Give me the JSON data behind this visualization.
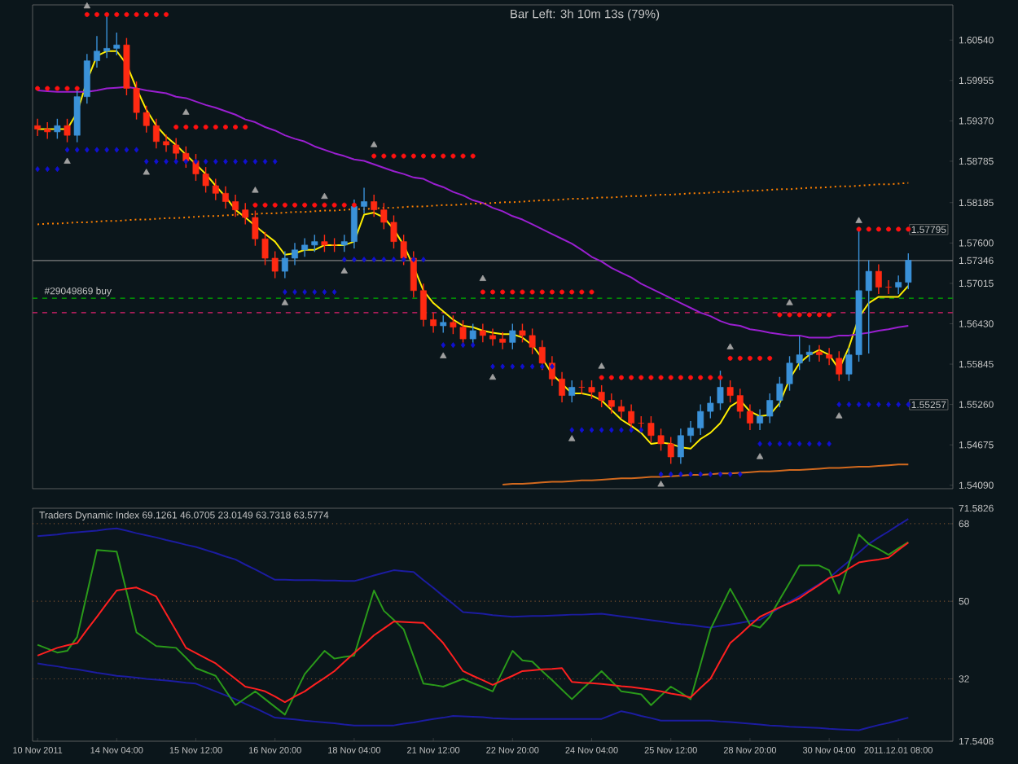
{
  "chart_data": [
    {
      "type": "candlestick",
      "title": "Bar Left: 3h 10m 13s (79%)",
      "categories": [
        null,
        null,
        null,
        null,
        null,
        null,
        null,
        null,
        null,
        null,
        null,
        null,
        null,
        null,
        null,
        null,
        null,
        null,
        null,
        null,
        null,
        null,
        null,
        null,
        null,
        null,
        null,
        null,
        null,
        null,
        null,
        null,
        null,
        null,
        null,
        null,
        null,
        null,
        null,
        null,
        null,
        null,
        null,
        null,
        null,
        null,
        null,
        null,
        null,
        null,
        null,
        null,
        null,
        null,
        null,
        null,
        null,
        null,
        null,
        null,
        null,
        null,
        null,
        null,
        null,
        null,
        null,
        null,
        null,
        null,
        null,
        null,
        null,
        null,
        null,
        null,
        null,
        null,
        null,
        null,
        null,
        null,
        null,
        null,
        null,
        null,
        null,
        null,
        null
      ],
      "ohlc": [
        [
          1.593,
          1.594,
          1.5915,
          1.5925
        ],
        [
          1.5925,
          1.5935,
          1.5911,
          1.5921
        ],
        [
          1.5921,
          1.594,
          1.5911,
          1.593
        ],
        [
          1.593,
          1.594,
          1.5906,
          1.5916
        ],
        [
          1.5916,
          1.5982,
          1.5906,
          1.5972
        ],
        [
          1.5972,
          1.6034,
          1.5962,
          1.6024
        ],
        [
          1.6024,
          1.606,
          1.6014,
          1.6038
        ],
        [
          1.6038,
          1.6089,
          1.6028,
          1.6042
        ],
        [
          1.6042,
          1.6065,
          1.6032,
          1.6047
        ],
        [
          1.6047,
          1.6057,
          1.5974,
          1.5984
        ],
        [
          1.5984,
          1.5994,
          1.5939,
          1.5949
        ],
        [
          1.5949,
          1.5959,
          1.592,
          1.593
        ],
        [
          1.593,
          1.594,
          1.5897,
          1.5907
        ],
        [
          1.5907,
          1.5917,
          1.5892,
          1.5902
        ],
        [
          1.5902,
          1.5912,
          1.588,
          1.589
        ],
        [
          1.589,
          1.59,
          1.5869,
          1.5879
        ],
        [
          1.5879,
          1.5889,
          1.585,
          1.586
        ],
        [
          1.586,
          1.587,
          1.5833,
          1.5843
        ],
        [
          1.5843,
          1.5853,
          1.5822,
          1.5832
        ],
        [
          1.5832,
          1.5842,
          1.581,
          1.582
        ],
        [
          1.582,
          1.583,
          1.5798,
          1.5808
        ],
        [
          1.5808,
          1.5818,
          1.5787,
          1.5797
        ],
        [
          1.5797,
          1.5807,
          1.5756,
          1.5766
        ],
        [
          1.5766,
          1.5776,
          1.5728,
          1.5738
        ],
        [
          1.5738,
          1.5748,
          1.5709,
          1.5719
        ],
        [
          1.5719,
          1.5748,
          1.5709,
          1.5738
        ],
        [
          1.5738,
          1.576,
          1.5728,
          1.575
        ],
        [
          1.575,
          1.5767,
          1.574,
          1.5757
        ],
        [
          1.5757,
          1.5772,
          1.5747,
          1.5762
        ],
        [
          1.5762,
          1.5772,
          1.5747,
          1.5757
        ],
        [
          1.5757,
          1.5767,
          1.5747,
          1.5757
        ],
        [
          1.5757,
          1.5772,
          1.5747,
          1.5762
        ],
        [
          1.5762,
          1.5823,
          1.5752,
          1.5813
        ],
        [
          1.5813,
          1.584,
          1.5803,
          1.582
        ],
        [
          1.582,
          1.583,
          1.5798,
          1.5808
        ],
        [
          1.5808,
          1.5818,
          1.578,
          1.579
        ],
        [
          1.579,
          1.58,
          1.5752,
          1.5762
        ],
        [
          1.5762,
          1.5772,
          1.5728,
          1.5738
        ],
        [
          1.5738,
          1.5748,
          1.5681,
          1.5691
        ],
        [
          1.5691,
          1.5701,
          1.5639,
          1.5649
        ],
        [
          1.5649,
          1.5659,
          1.563,
          1.564
        ],
        [
          1.564,
          1.5655,
          1.563,
          1.5645
        ],
        [
          1.5645,
          1.5655,
          1.5628,
          1.5638
        ],
        [
          1.5638,
          1.5648,
          1.5611,
          1.5621
        ],
        [
          1.5621,
          1.5643,
          1.5611,
          1.5633
        ],
        [
          1.5633,
          1.5643,
          1.5616,
          1.5626
        ],
        [
          1.5626,
          1.5636,
          1.5611,
          1.5621
        ],
        [
          1.5621,
          1.5631,
          1.5606,
          1.5616
        ],
        [
          1.5616,
          1.5643,
          1.5606,
          1.5633
        ],
        [
          1.5633,
          1.5643,
          1.5616,
          1.5626
        ],
        [
          1.5626,
          1.5636,
          1.5599,
          1.5609
        ],
        [
          1.5609,
          1.5619,
          1.5576,
          1.5586
        ],
        [
          1.5586,
          1.5596,
          1.5553,
          1.5563
        ],
        [
          1.5563,
          1.5573,
          1.5529,
          1.5539
        ],
        [
          1.5539,
          1.5561,
          1.5529,
          1.5551
        ],
        [
          1.5551,
          1.5561,
          1.5541,
          1.5551
        ],
        [
          1.5551,
          1.5561,
          1.5534,
          1.5544
        ],
        [
          1.5544,
          1.5554,
          1.5522,
          1.5532
        ],
        [
          1.5532,
          1.5542,
          1.5513,
          1.5523
        ],
        [
          1.5523,
          1.5533,
          1.5506,
          1.5516
        ],
        [
          1.5516,
          1.5526,
          1.5489,
          1.5499
        ],
        [
          1.5499,
          1.5509,
          1.5489,
          1.5499
        ],
        [
          1.5499,
          1.5509,
          1.5471,
          1.5481
        ],
        [
          1.5481,
          1.5491,
          1.5459,
          1.5469
        ],
        [
          1.5469,
          1.5479,
          1.544,
          1.545
        ],
        [
          1.545,
          1.5491,
          1.544,
          1.5481
        ],
        [
          1.5481,
          1.5502,
          1.5471,
          1.5492
        ],
        [
          1.5492,
          1.5526,
          1.5482,
          1.5516
        ],
        [
          1.5516,
          1.5538,
          1.5506,
          1.5528
        ],
        [
          1.5528,
          1.5575,
          1.5518,
          1.5551
        ],
        [
          1.5551,
          1.5561,
          1.5529,
          1.5539
        ],
        [
          1.5539,
          1.5549,
          1.5506,
          1.5516
        ],
        [
          1.5516,
          1.5526,
          1.5489,
          1.5499
        ],
        [
          1.5499,
          1.5519,
          1.5489,
          1.5509
        ],
        [
          1.5509,
          1.5542,
          1.5499,
          1.5532
        ],
        [
          1.5532,
          1.5566,
          1.5522,
          1.5556
        ],
        [
          1.5556,
          1.5596,
          1.5546,
          1.5586
        ],
        [
          1.5586,
          1.5625,
          1.5576,
          1.5598
        ],
        [
          1.5598,
          1.5612,
          1.5588,
          1.5602
        ],
        [
          1.5602,
          1.5612,
          1.5588,
          1.5598
        ],
        [
          1.5598,
          1.5608,
          1.5583,
          1.5593
        ],
        [
          1.5593,
          1.5603,
          1.556,
          1.557
        ],
        [
          1.557,
          1.5608,
          1.556,
          1.5598
        ],
        [
          1.5598,
          1.578,
          1.5588,
          1.5691
        ],
        [
          1.5691,
          1.5735,
          1.56,
          1.5719
        ],
        [
          1.5719,
          1.5729,
          1.5686,
          1.5696
        ],
        [
          1.5696,
          1.5706,
          1.5686,
          1.5696
        ],
        [
          1.5696,
          1.5713,
          1.5686,
          1.5703
        ],
        [
          1.5703,
          1.5745,
          1.5693,
          1.5735
        ]
      ],
      "colors": [
        "#ff2a12",
        "#ff2a12",
        "#3a91d8",
        "#ff2a12",
        "#3a91d8",
        "#3a91d8",
        "#3a91d8",
        "#3a91d8",
        "#3a91d8",
        "#ff2a12",
        "#ff2a12",
        "#ff2a12",
        "#ff2a12",
        "#ff2a12",
        "#ff2a12",
        "#ff2a12",
        "#ff2a12",
        "#ff2a12",
        "#ff2a12",
        "#ff2a12",
        "#ff2a12",
        "#ff2a12",
        "#ff2a12",
        "#ff2a12",
        "#ff2a12",
        "#3a91d8",
        "#3a91d8",
        "#3a91d8",
        "#3a91d8",
        "#ff2a12",
        "#ff2a12",
        "#3a91d8",
        "#3a91d8",
        "#3a91d8",
        "#ff2a12",
        "#ff2a12",
        "#ff2a12",
        "#ff2a12",
        "#ff2a12",
        "#ff2a12",
        "#ff2a12",
        "#3a91d8",
        "#ff2a12",
        "#ff2a12",
        "#3a91d8",
        "#ff2a12",
        "#ff2a12",
        "#ff2a12",
        "#3a91d8",
        "#ff2a12",
        "#ff2a12",
        "#ff2a12",
        "#ff2a12",
        "#ff2a12",
        "#3a91d8",
        "#ff2a12",
        "#ff2a12",
        "#ff2a12",
        "#ff2a12",
        "#ff2a12",
        "#ff2a12",
        "#ff2a12",
        "#ff2a12",
        "#ff2a12",
        "#ff2a12",
        "#3a91d8",
        "#3a91d8",
        "#3a91d8",
        "#3a91d8",
        "#3a91d8",
        "#ff2a12",
        "#ff2a12",
        "#ff2a12",
        "#3a91d8",
        "#3a91d8",
        "#3a91d8",
        "#3a91d8",
        "#3a91d8",
        "#3a91d8",
        "#ff2a12",
        "#ff2a12",
        "#ff2a12",
        "#3a91d8",
        "#3a91d8",
        "#3a91d8",
        "#ff2a12",
        "#ff2a12",
        "#3a91d8",
        "#3a91d8"
      ],
      "series": [
        {
          "type": "line",
          "color": "#ffee00",
          "values": [
            1.5925,
            1.5925,
            1.5925,
            1.5925,
            1.5949,
            1.5995,
            1.6031,
            1.6038,
            1.6038,
            1.6019,
            1.5984,
            1.5953,
            1.593,
            1.5914,
            1.5902,
            1.5888,
            1.5874,
            1.586,
            1.5843,
            1.5827,
            1.5808,
            1.5797,
            1.5785,
            1.5773,
            1.5762,
            1.5743,
            1.5745,
            1.575,
            1.575,
            1.5757,
            1.5757,
            1.5757,
            1.5762,
            1.5801,
            1.5804,
            1.5797,
            1.578,
            1.5757,
            1.5726,
            1.5691,
            1.5673,
            1.5661,
            1.5649,
            1.564,
            1.5638,
            1.5633,
            1.563,
            1.5628,
            1.5628,
            1.5623,
            1.5612,
            1.5593,
            1.557,
            1.5556,
            1.5542,
            1.5542,
            1.5539,
            1.5532,
            1.5518,
            1.5504,
            1.5495,
            1.5485,
            1.5469,
            1.5471,
            1.5469,
            1.5464,
            1.5462,
            1.5476,
            1.5485,
            1.5499,
            1.5523,
            1.5532,
            1.5516,
            1.5509,
            1.5511,
            1.5528,
            1.5563,
            1.5586,
            1.5598,
            1.5605,
            1.5598,
            1.5577,
            1.5609,
            1.5652,
            1.5673,
            1.5682,
            1.5682,
            1.5682,
            1.5698
          ]
        },
        {
          "type": "line",
          "color": "#9a1fd0",
          "values": [
            1.5981,
            1.598,
            1.5979,
            1.5979,
            1.5979,
            1.5979,
            1.5981,
            1.5984,
            1.5985,
            1.5986,
            1.5984,
            1.5981,
            1.5979,
            1.5977,
            1.5972,
            1.597,
            1.5965,
            1.596,
            1.5956,
            1.5951,
            1.5946,
            1.5939,
            1.5935,
            1.5928,
            1.5923,
            1.5916,
            1.5911,
            1.5907,
            1.59,
            1.5895,
            1.589,
            1.5886,
            1.5881,
            1.5879,
            1.5874,
            1.5869,
            1.5864,
            1.586,
            1.5855,
            1.5853,
            1.5846,
            1.5841,
            1.5834,
            1.5829,
            1.5822,
            1.5818,
            1.5811,
            1.5806,
            1.5799,
            1.5794,
            1.5787,
            1.578,
            1.5773,
            1.5766,
            1.5759,
            1.575,
            1.574,
            1.5733,
            1.5724,
            1.5717,
            1.571,
            1.5701,
            1.5694,
            1.5687,
            1.568,
            1.5673,
            1.5666,
            1.5659,
            1.5654,
            1.5647,
            1.5642,
            1.564,
            1.5635,
            1.5633,
            1.563,
            1.5628,
            1.5626,
            1.5626,
            1.5623,
            1.5623,
            1.5623,
            1.5626,
            1.5626,
            1.5628,
            1.563,
            1.5633,
            1.5635,
            1.5638,
            1.564
          ]
        },
        {
          "type": "line",
          "color": "#ff8000",
          "line_style": "dotted",
          "values": [
            1.5787,
            1.5788,
            1.5788,
            1.5789,
            1.579,
            1.579,
            1.5791,
            1.5792,
            1.5792,
            1.5793,
            1.5794,
            1.5794,
            1.5795,
            1.5796,
            1.5796,
            1.5797,
            1.5798,
            1.5799,
            1.5799,
            1.58,
            1.5801,
            1.5801,
            1.5802,
            1.5803,
            1.5803,
            1.5804,
            1.5805,
            1.5805,
            1.5806,
            1.5807,
            1.5807,
            1.5808,
            1.5809,
            1.5809,
            1.581,
            1.5811,
            1.5811,
            1.5812,
            1.5813,
            1.5813,
            1.5814,
            1.5815,
            1.5815,
            1.5816,
            1.5817,
            1.5817,
            1.5818,
            1.5819,
            1.5819,
            1.582,
            1.5821,
            1.5822,
            1.5822,
            1.5823,
            1.5824,
            1.5824,
            1.5825,
            1.5826,
            1.5826,
            1.5827,
            1.5828,
            1.5828,
            1.5829,
            1.583,
            1.583,
            1.5831,
            1.5832,
            1.5832,
            1.5833,
            1.5834,
            1.5834,
            1.5835,
            1.5836,
            1.5836,
            1.5837,
            1.5838,
            1.5838,
            1.5839,
            1.584,
            1.584,
            1.5841,
            1.5842,
            1.5842,
            1.5843,
            1.5844,
            1.5845,
            1.5845,
            1.5846,
            1.5847
          ]
        },
        {
          "type": "line",
          "color": "#d2691e",
          "values": [
            null,
            null,
            null,
            null,
            null,
            null,
            null,
            null,
            null,
            null,
            null,
            null,
            null,
            null,
            null,
            null,
            null,
            null,
            null,
            null,
            null,
            null,
            null,
            null,
            null,
            null,
            null,
            null,
            null,
            null,
            null,
            null,
            null,
            null,
            null,
            null,
            null,
            null,
            null,
            null,
            null,
            null,
            null,
            null,
            null,
            null,
            null,
            1.541,
            1.5411,
            1.5411,
            1.5412,
            1.5413,
            1.5414,
            1.5414,
            1.5415,
            1.5416,
            1.5416,
            1.5417,
            1.5418,
            1.5419,
            1.5419,
            1.542,
            1.5421,
            1.5421,
            1.5422,
            1.5423,
            1.5424,
            1.5424,
            1.5425,
            1.5426,
            1.5426,
            1.5427,
            1.5428,
            1.5429,
            1.5429,
            1.543,
            1.5431,
            1.5431,
            1.5432,
            1.5433,
            1.5434,
            1.5434,
            1.5435,
            1.5436,
            1.5436,
            1.5437,
            1.5438,
            1.5439,
            1.5439
          ]
        },
        {
          "type": "scatter",
          "marker": "circle",
          "color": "#ff1010",
          "values": [
            1.5984,
            1.5984,
            1.5984,
            1.5984,
            1.5984,
            1.6091,
            1.6091,
            1.6091,
            1.6091,
            1.6091,
            1.6091,
            1.6091,
            1.6091,
            1.6091,
            1.5928,
            1.5928,
            1.5928,
            1.5928,
            1.5928,
            1.5928,
            1.5928,
            1.5928,
            1.5815,
            1.5815,
            1.5815,
            1.5815,
            1.5815,
            1.5815,
            1.5815,
            1.5815,
            1.5815,
            1.5815,
            1.5815,
            null,
            1.5886,
            1.5886,
            1.5886,
            1.5886,
            1.5886,
            1.5886,
            1.5886,
            1.5886,
            1.5886,
            1.5886,
            1.5886,
            1.5689,
            1.5689,
            1.5689,
            1.5689,
            1.5689,
            1.5689,
            1.5689,
            1.5689,
            1.5689,
            1.5689,
            1.5689,
            1.5689,
            1.5565,
            1.5565,
            1.5565,
            1.5565,
            1.5565,
            1.5565,
            1.5565,
            1.5565,
            1.5565,
            1.5565,
            1.5565,
            1.5565,
            1.5565,
            1.5593,
            1.5593,
            1.5593,
            1.5593,
            1.5593,
            1.5656,
            1.5656,
            1.5656,
            1.5656,
            1.5656,
            1.5656,
            null,
            null,
            1.578,
            1.578,
            1.578,
            1.578,
            1.578,
            1.578
          ]
        },
        {
          "type": "scatter",
          "marker": "diamond",
          "color": "#1010d0",
          "values": [
            1.5867,
            1.5867,
            1.5867,
            1.5895,
            1.5895,
            1.5895,
            1.5895,
            1.5895,
            1.5895,
            1.5895,
            1.5895,
            1.5878,
            1.5878,
            1.5878,
            1.5878,
            1.5878,
            1.5878,
            1.5878,
            1.5878,
            1.5878,
            1.5878,
            1.5878,
            1.5878,
            1.5878,
            1.5878,
            1.5689,
            1.5689,
            1.5689,
            1.5689,
            1.5689,
            1.5689,
            1.5736,
            1.5736,
            1.5736,
            1.5736,
            1.5736,
            1.5736,
            1.5736,
            1.5736,
            1.5736,
            null,
            1.5612,
            1.5612,
            1.5612,
            1.5612,
            null,
            1.5581,
            1.5581,
            1.5581,
            1.5581,
            1.5581,
            1.5581,
            1.5581,
            null,
            1.5489,
            1.5489,
            1.5489,
            1.5489,
            1.5489,
            1.5489,
            1.5489,
            1.5489,
            null,
            1.5425,
            1.5425,
            1.5425,
            1.5425,
            1.5425,
            1.5425,
            1.5425,
            1.5425,
            1.5425,
            null,
            1.5469,
            1.5469,
            1.5469,
            1.5469,
            1.5469,
            1.5469,
            1.5469,
            1.5469,
            1.5526,
            1.5526,
            1.5526,
            1.5526,
            1.5526,
            1.5526,
            1.5526,
            1.5526
          ]
        },
        {
          "type": "scatter",
          "marker": "triangle",
          "color": "#a0a0a0",
          "values": [
            null,
            null,
            null,
            null,
            null,
            1.6103,
            null,
            null,
            null,
            null,
            null,
            null,
            null,
            null,
            null,
            1.5949,
            null,
            null,
            null,
            null,
            null,
            null,
            1.5836,
            null,
            null,
            null,
            null,
            null,
            null,
            1.5827,
            null,
            null,
            null,
            null,
            1.5902,
            null,
            null,
            null,
            null,
            null,
            null,
            null,
            null,
            null,
            null,
            1.5708,
            null,
            null,
            null,
            null,
            null,
            null,
            null,
            null,
            null,
            null,
            null,
            1.5581,
            null,
            null,
            null,
            null,
            null,
            null,
            null,
            null,
            null,
            null,
            null,
            null,
            1.5609,
            null,
            null,
            null,
            null,
            null,
            1.5673,
            null,
            null,
            null,
            null,
            null,
            null,
            1.5792,
            null,
            null,
            null,
            null,
            null
          ]
        },
        {
          "type": "scatter",
          "marker": "triangle",
          "color": "#a0a0a0",
          "values": [
            null,
            null,
            null,
            1.5878,
            null,
            null,
            null,
            null,
            null,
            null,
            null,
            1.5862,
            null,
            null,
            null,
            null,
            null,
            null,
            null,
            null,
            null,
            null,
            null,
            null,
            null,
            1.5673,
            null,
            null,
            null,
            null,
            null,
            1.5719,
            null,
            null,
            null,
            null,
            null,
            null,
            null,
            null,
            null,
            1.5596,
            null,
            null,
            null,
            null,
            1.5565,
            null,
            null,
            null,
            null,
            null,
            null,
            null,
            1.5476,
            null,
            null,
            null,
            null,
            null,
            null,
            null,
            null,
            1.541,
            null,
            null,
            null,
            null,
            null,
            null,
            null,
            null,
            null,
            1.545,
            null,
            null,
            null,
            null,
            null,
            null,
            null,
            1.5509,
            null,
            null,
            null,
            null,
            null,
            null,
            null
          ]
        }
      ],
      "ref_lines": [
        {
          "axis": "y",
          "value": 1.57346,
          "color": "#808080"
        },
        {
          "axis": "y",
          "value": 1.568,
          "label": "#29049869 buy",
          "color": "#00b000",
          "line_style": "dashed"
        },
        {
          "axis": "y",
          "value": 1.5659,
          "color": "#e0206e",
          "line_style": "dashed"
        }
      ],
      "annotations": [
        "1.57795",
        "1.55257"
      ],
      "ylim": [
        1.5404,
        1.6105
      ],
      "yticks": [
        {
          "value": 1.5409,
          "label": "1.54090"
        },
        1.54675,
        {
          "value": 1.5526,
          "label": "1.55260"
        },
        1.55845,
        {
          "value": 1.5643,
          "label": "1.56430"
        },
        1.57015,
        1.57346,
        {
          "value": 1.576,
          "label": "1.57600"
        },
        1.58185,
        1.58785,
        {
          "value": 1.5937,
          "label": "1.59370"
        },
        1.59955,
        {
          "value": 1.6054,
          "label": "1.60540"
        }
      ],
      "tick_labels": "y"
    },
    {
      "type": "line",
      "title": "Traders Dynamic Index 69.1261 46.0705 23.0149 63.7318 63.5774",
      "categories": [
        "10 Nov 2011",
        null,
        null,
        null,
        null,
        null,
        null,
        null,
        "14 Nov 04:00",
        null,
        null,
        null,
        null,
        null,
        null,
        null,
        "15 Nov 12:00",
        null,
        null,
        null,
        null,
        null,
        null,
        null,
        "16 Nov 20:00",
        null,
        null,
        null,
        null,
        null,
        null,
        null,
        "18 Nov 04:00",
        null,
        null,
        null,
        null,
        null,
        null,
        null,
        "21 Nov 12:00",
        null,
        null,
        null,
        null,
        null,
        null,
        null,
        "22 Nov 20:00",
        null,
        null,
        null,
        null,
        null,
        null,
        null,
        "24 Nov 04:00",
        null,
        null,
        null,
        null,
        null,
        null,
        null,
        "25 Nov 12:00",
        null,
        null,
        null,
        null,
        null,
        null,
        null,
        "28 Nov 20:00",
        null,
        null,
        null,
        null,
        null,
        null,
        null,
        "30 Nov 04:00",
        null,
        null,
        null,
        null,
        null,
        null,
        "2011.12.01 08:00",
        null
      ],
      "series": [
        {
          "color": "#1c1ca0",
          "values": [
            65.1,
            65.3,
            65.5,
            65.8,
            66.0,
            66.2,
            66.4,
            66.7,
            66.9,
            66.4,
            65.8,
            65.3,
            64.8,
            64.2,
            63.7,
            63.1,
            62.6,
            61.9,
            61.2,
            60.4,
            59.7,
            58.5,
            57.4,
            56.2,
            55.0,
            55.0,
            54.9,
            54.9,
            54.9,
            54.8,
            54.8,
            54.7,
            54.7,
            55.3,
            56.0,
            56.6,
            57.2,
            57.0,
            56.8,
            54.9,
            53.1,
            51.2,
            49.4,
            47.5,
            47.3,
            47.1,
            46.8,
            46.6,
            46.4,
            46.5,
            46.6,
            46.6,
            46.7,
            46.8,
            46.9,
            46.9,
            47.0,
            47.1,
            46.8,
            46.5,
            46.2,
            45.9,
            45.6,
            45.3,
            45.0,
            44.7,
            44.5,
            44.2,
            43.9,
            44.3,
            44.6,
            45.0,
            45.4,
            45.7,
            47.1,
            48.5,
            49.9,
            51.2,
            52.6,
            54.0,
            55.4,
            57.4,
            59.3,
            61.3,
            63.3,
            64.8,
            66.2,
            67.7,
            69.1
          ]
        },
        {
          "color": "#1c1ca0",
          "values": [
            35.6,
            35.2,
            34.9,
            34.5,
            34.2,
            33.8,
            33.4,
            33.1,
            32.7,
            32.5,
            32.3,
            32.0,
            31.8,
            31.6,
            31.4,
            31.1,
            30.9,
            30.0,
            29.1,
            28.2,
            27.3,
            26.2,
            25.2,
            24.1,
            23.0,
            22.8,
            22.6,
            22.3,
            22.1,
            21.9,
            21.7,
            21.4,
            21.2,
            21.2,
            21.2,
            21.2,
            21.2,
            21.6,
            21.9,
            22.3,
            22.7,
            23.0,
            23.4,
            23.3,
            23.2,
            23.1,
            22.9,
            22.8,
            22.7,
            22.7,
            22.7,
            22.7,
            22.7,
            22.7,
            22.7,
            22.7,
            22.7,
            22.7,
            23.6,
            24.5,
            24.0,
            23.4,
            22.9,
            22.3,
            22.3,
            22.3,
            22.3,
            22.3,
            22.3,
            22.1,
            22.0,
            21.8,
            21.6,
            21.4,
            21.2,
            21.1,
            20.9,
            20.8,
            20.7,
            20.6,
            20.4,
            20.3,
            20.2,
            20.1,
            20.7,
            21.3,
            21.8,
            22.4,
            23.0
          ]
        },
        {
          "color": "#2a9a1a",
          "values": [
            39.9,
            39.0,
            38.1,
            38.5,
            41.7,
            51.8,
            61.9,
            61.7,
            61.5,
            52.2,
            42.8,
            41.2,
            39.6,
            39.4,
            39.2,
            36.9,
            34.5,
            33.6,
            32.7,
            29.3,
            25.9,
            27.5,
            29.1,
            27.3,
            25.5,
            23.7,
            28.4,
            33.1,
            35.8,
            38.5,
            36.7,
            37.1,
            37.4,
            45.0,
            52.5,
            47.8,
            45.7,
            43.5,
            37.2,
            30.9,
            30.6,
            30.2,
            31.1,
            32.0,
            31.0,
            30.1,
            29.1,
            33.8,
            38.5,
            36.3,
            36.0,
            33.8,
            31.7,
            29.5,
            27.3,
            29.5,
            31.6,
            33.8,
            31.5,
            29.1,
            28.8,
            28.4,
            25.9,
            28.1,
            30.2,
            28.8,
            27.3,
            35.4,
            43.5,
            48.2,
            52.9,
            48.8,
            44.6,
            43.9,
            46.4,
            50.4,
            54.3,
            58.3,
            58.3,
            58.3,
            57.2,
            51.8,
            58.7,
            65.5,
            63.3,
            62.1,
            60.8,
            62.3,
            63.7
          ]
        },
        {
          "color": "#ff2020",
          "values": [
            37.4,
            38.3,
            39.2,
            39.8,
            40.3,
            43.4,
            46.4,
            49.5,
            52.5,
            52.9,
            53.2,
            52.2,
            51.1,
            47.1,
            43.2,
            39.2,
            38.0,
            36.8,
            35.6,
            33.8,
            32.0,
            30.2,
            29.7,
            29.1,
            27.9,
            26.6,
            27.9,
            29.1,
            30.7,
            32.2,
            33.8,
            35.9,
            38.0,
            40.0,
            42.1,
            43.7,
            45.3,
            45.2,
            45.1,
            45.0,
            42.7,
            40.3,
            37.1,
            33.8,
            32.7,
            31.7,
            30.6,
            31.7,
            32.7,
            33.8,
            34.0,
            34.2,
            34.3,
            34.5,
            31.3,
            31.1,
            31.0,
            30.8,
            30.6,
            30.3,
            30.1,
            29.8,
            29.5,
            29.1,
            28.6,
            28.2,
            27.7,
            29.9,
            32.0,
            36.2,
            40.3,
            42.3,
            44.4,
            46.4,
            47.5,
            48.6,
            49.6,
            50.7,
            52.3,
            53.8,
            55.4,
            56.1,
            57.6,
            59.0,
            59.4,
            59.7,
            60.1,
            61.9,
            63.6
          ]
        }
      ],
      "ref_lines": [
        {
          "axis": "y",
          "value": 68,
          "color": "#7a5030",
          "line_style": "dotted"
        },
        {
          "axis": "y",
          "value": 50,
          "color": "#7a5030",
          "line_style": "dotted"
        },
        {
          "axis": "y",
          "value": 32,
          "color": "#7a5030",
          "line_style": "dotted"
        }
      ],
      "ylim": [
        17.5408,
        71.5826
      ],
      "yticks": [
        17.5408,
        32,
        50,
        68,
        71.5826
      ]
    }
  ]
}
